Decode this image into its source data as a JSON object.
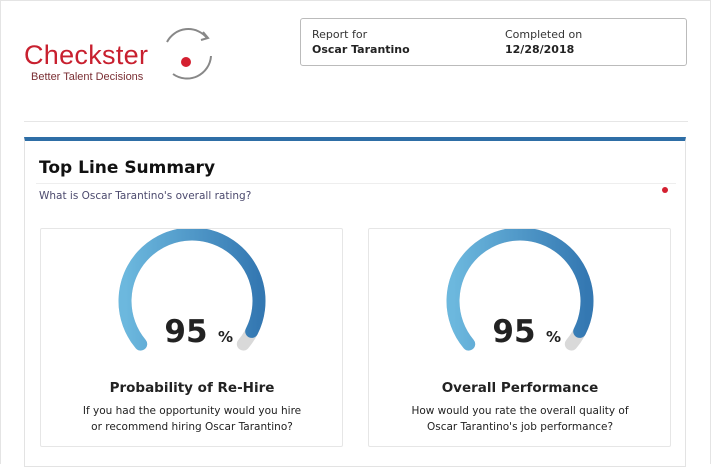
{
  "header": {
    "logo_name": "Checkster",
    "logo_tagline": "Better Talent Decisions",
    "report_for_label": "Report for",
    "report_for": "Oscar Tarantino",
    "completed_label": "Completed on",
    "completed": "12/28/2018"
  },
  "summary": {
    "title": "Top Line Summary",
    "question": "What is Oscar Tarantino's overall rating?"
  },
  "gauge_scale": [
    0,
    100
  ],
  "gauges": [
    {
      "value": 95,
      "unit": "%",
      "title": "Probability of Re-Hire",
      "description": [
        "If you had the opportunity would you hire",
        "or recommend hiring Oscar Tarantino?"
      ]
    },
    {
      "value": 95,
      "unit": "%",
      "title": "Overall Performance",
      "description": [
        "How would you rate the overall quality of",
        "Oscar Tarantino's job performance?"
      ]
    }
  ]
}
